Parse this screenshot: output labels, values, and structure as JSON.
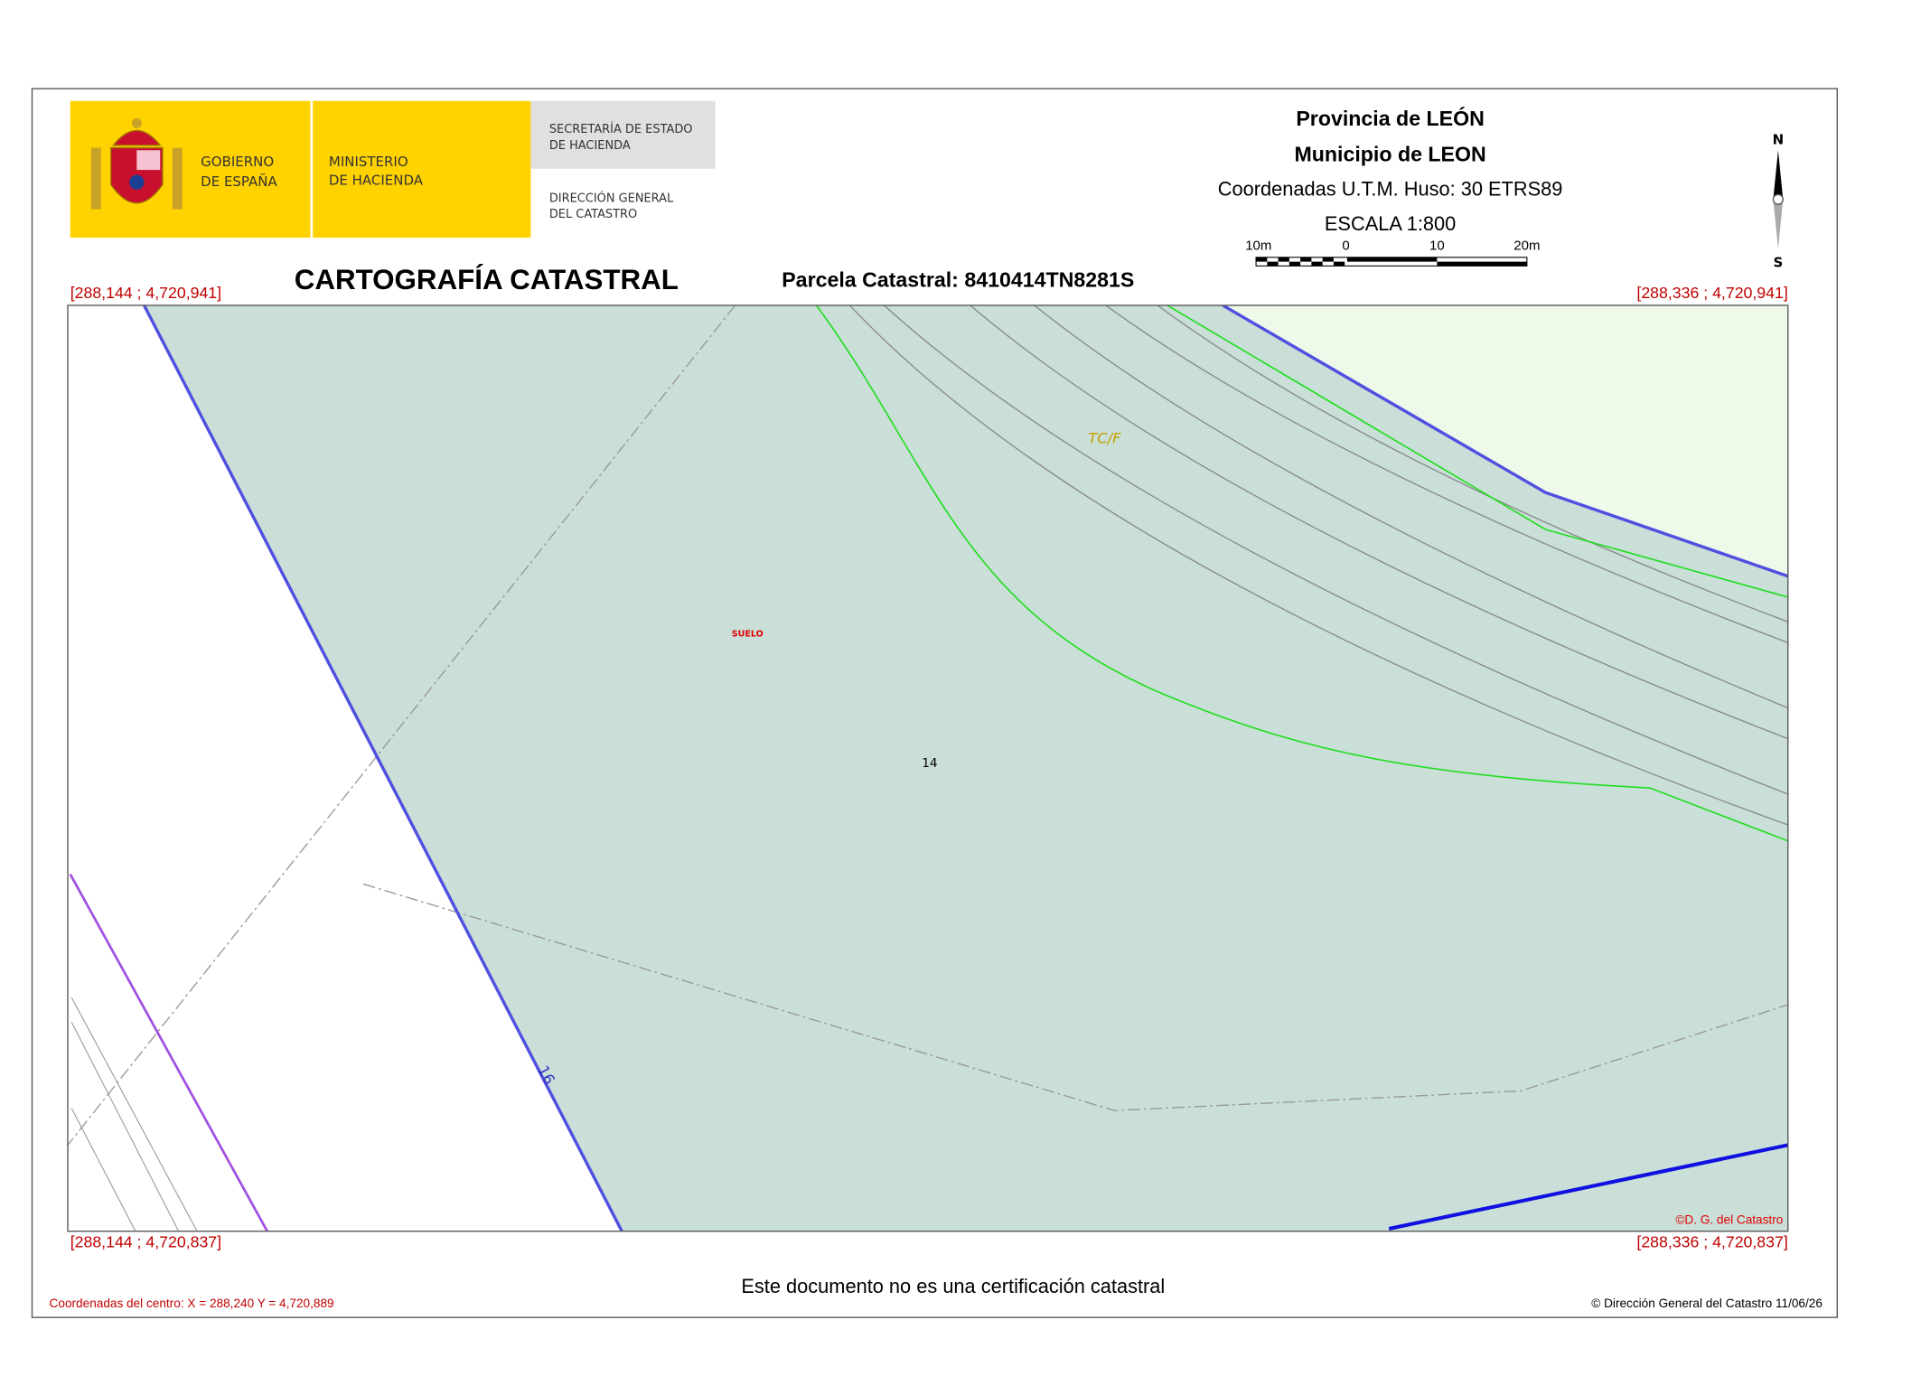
{
  "header": {
    "logo": {
      "gobierno": [
        "GOBIERNO",
        "DE ESPAÑA"
      ],
      "ministerio": [
        "MINISTERIO",
        "DE HACIENDA"
      ],
      "secretaria": [
        "SECRETARÍA DE ESTADO",
        "DE HACIENDA"
      ],
      "direccion": [
        "DIRECCIÓN GENERAL",
        "DEL CATASTRO"
      ]
    },
    "provincia": "Provincia de LEÓN",
    "municipio": "Municipio de LEON",
    "coordenadas": "Coordenadas U.T.M. Huso: 30 ETRS89",
    "escala": "ESCALA 1:800",
    "scale_bar_labels": [
      "10m",
      "0",
      "10",
      "20m"
    ],
    "north": "N",
    "south": "S",
    "title": "CARTOGRAFÍA CATASTRAL",
    "parcela": "Parcela Catastral: 8410414TN8281S"
  },
  "map": {
    "corners": {
      "top_left": "[288,144 ; 4,720,941]",
      "top_right": "[288,336 ; 4,720,941]",
      "bottom_left": "[288,144 ; 4,720,837]",
      "bottom_right": "[288,336 ; 4,720,837]"
    },
    "labels": {
      "tcf": "TC/F",
      "suelo": "SUELO",
      "parcel": "14",
      "street": "16"
    },
    "credit": "©D. G. del Catastro"
  },
  "footer": {
    "notice": "Este documento no es una certificación catastral",
    "center": "Coordenadas del centro: X = 288,240 Y = 4,720,889",
    "copyright": "© Dirección General del Catastro 11/06/26"
  }
}
